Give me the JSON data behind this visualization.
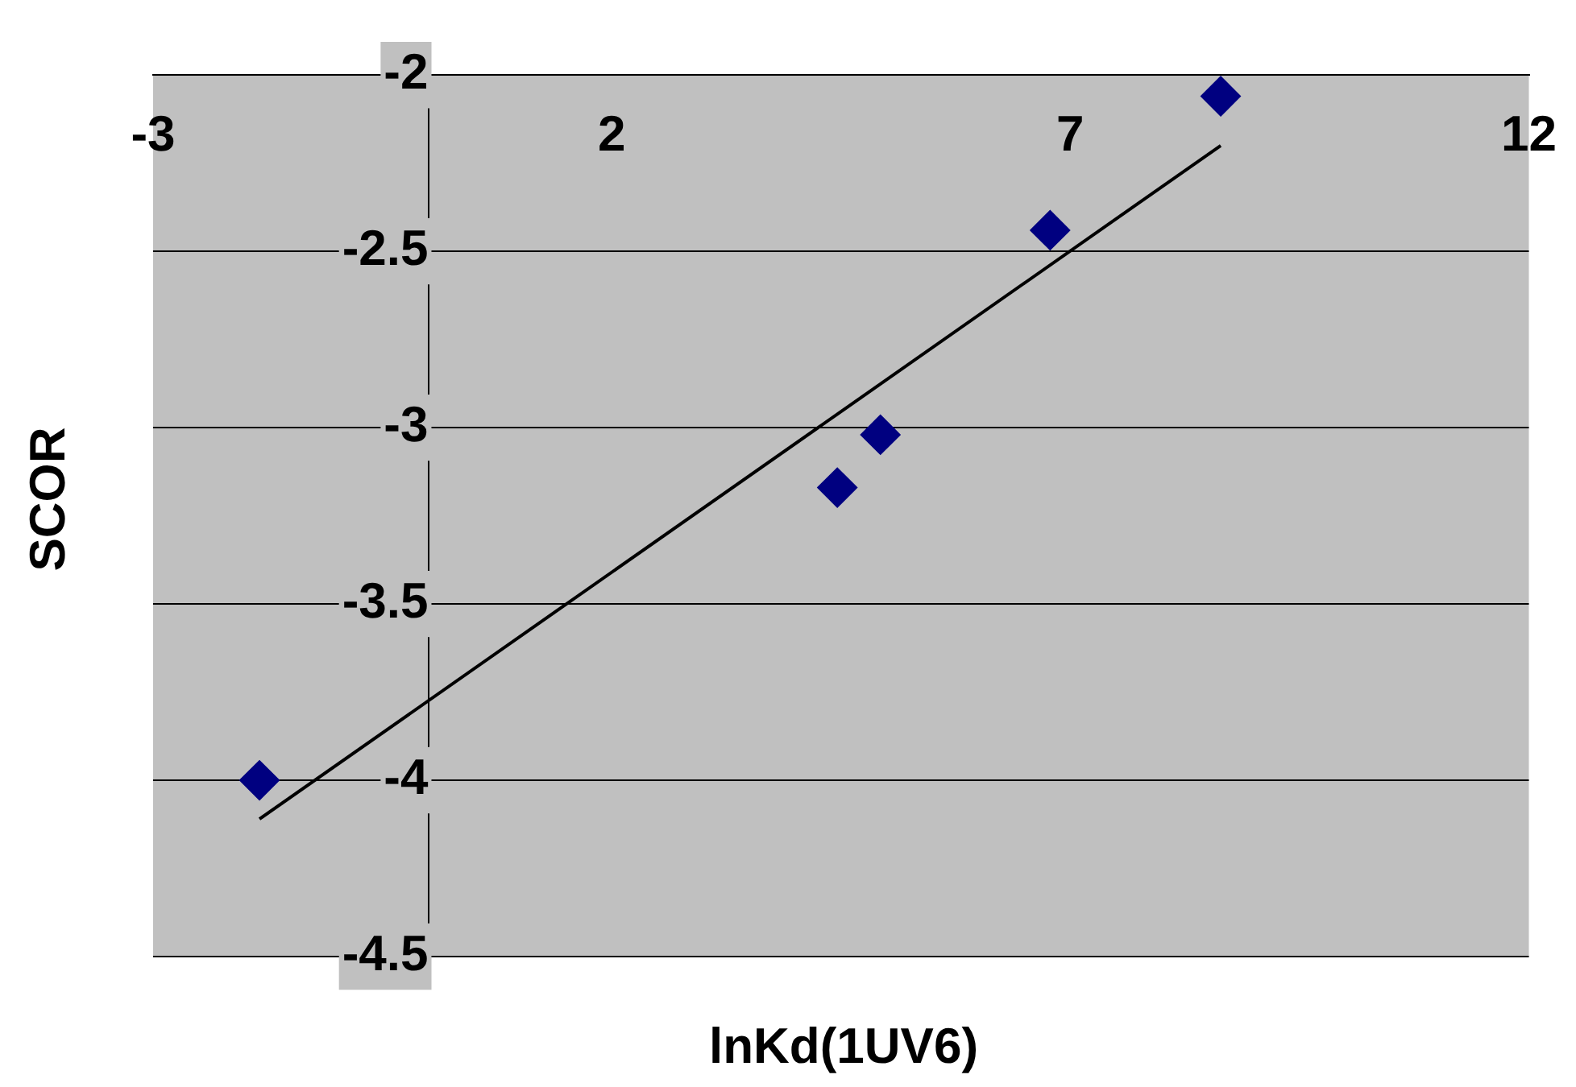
{
  "chart_data": {
    "type": "scatter",
    "xlabel": "lnKd(1UV6)",
    "ylabel": "SCOR",
    "xlim": [
      -3,
      12
    ],
    "xticks": [
      -3,
      2,
      7,
      12
    ],
    "ylim": [
      -4.5,
      -2
    ],
    "yticks": [
      -4.5,
      -4,
      -3.5,
      -3,
      -2.5,
      -2
    ],
    "grid": "y",
    "legend": false,
    "marker": "diamond",
    "series": [
      {
        "color": "#000080",
        "x": [
          -1.84,
          4.46,
          4.93,
          6.78,
          8.64
        ],
        "values": [
          -4.0,
          -3.17,
          -3.02,
          -2.44,
          -2.06
        ]
      },
      {
        "type": "line",
        "color": "#000000",
        "marker": "none",
        "x": [
          -1.84,
          8.64
        ],
        "values": [
          -4.11,
          -2.2
        ]
      }
    ]
  }
}
